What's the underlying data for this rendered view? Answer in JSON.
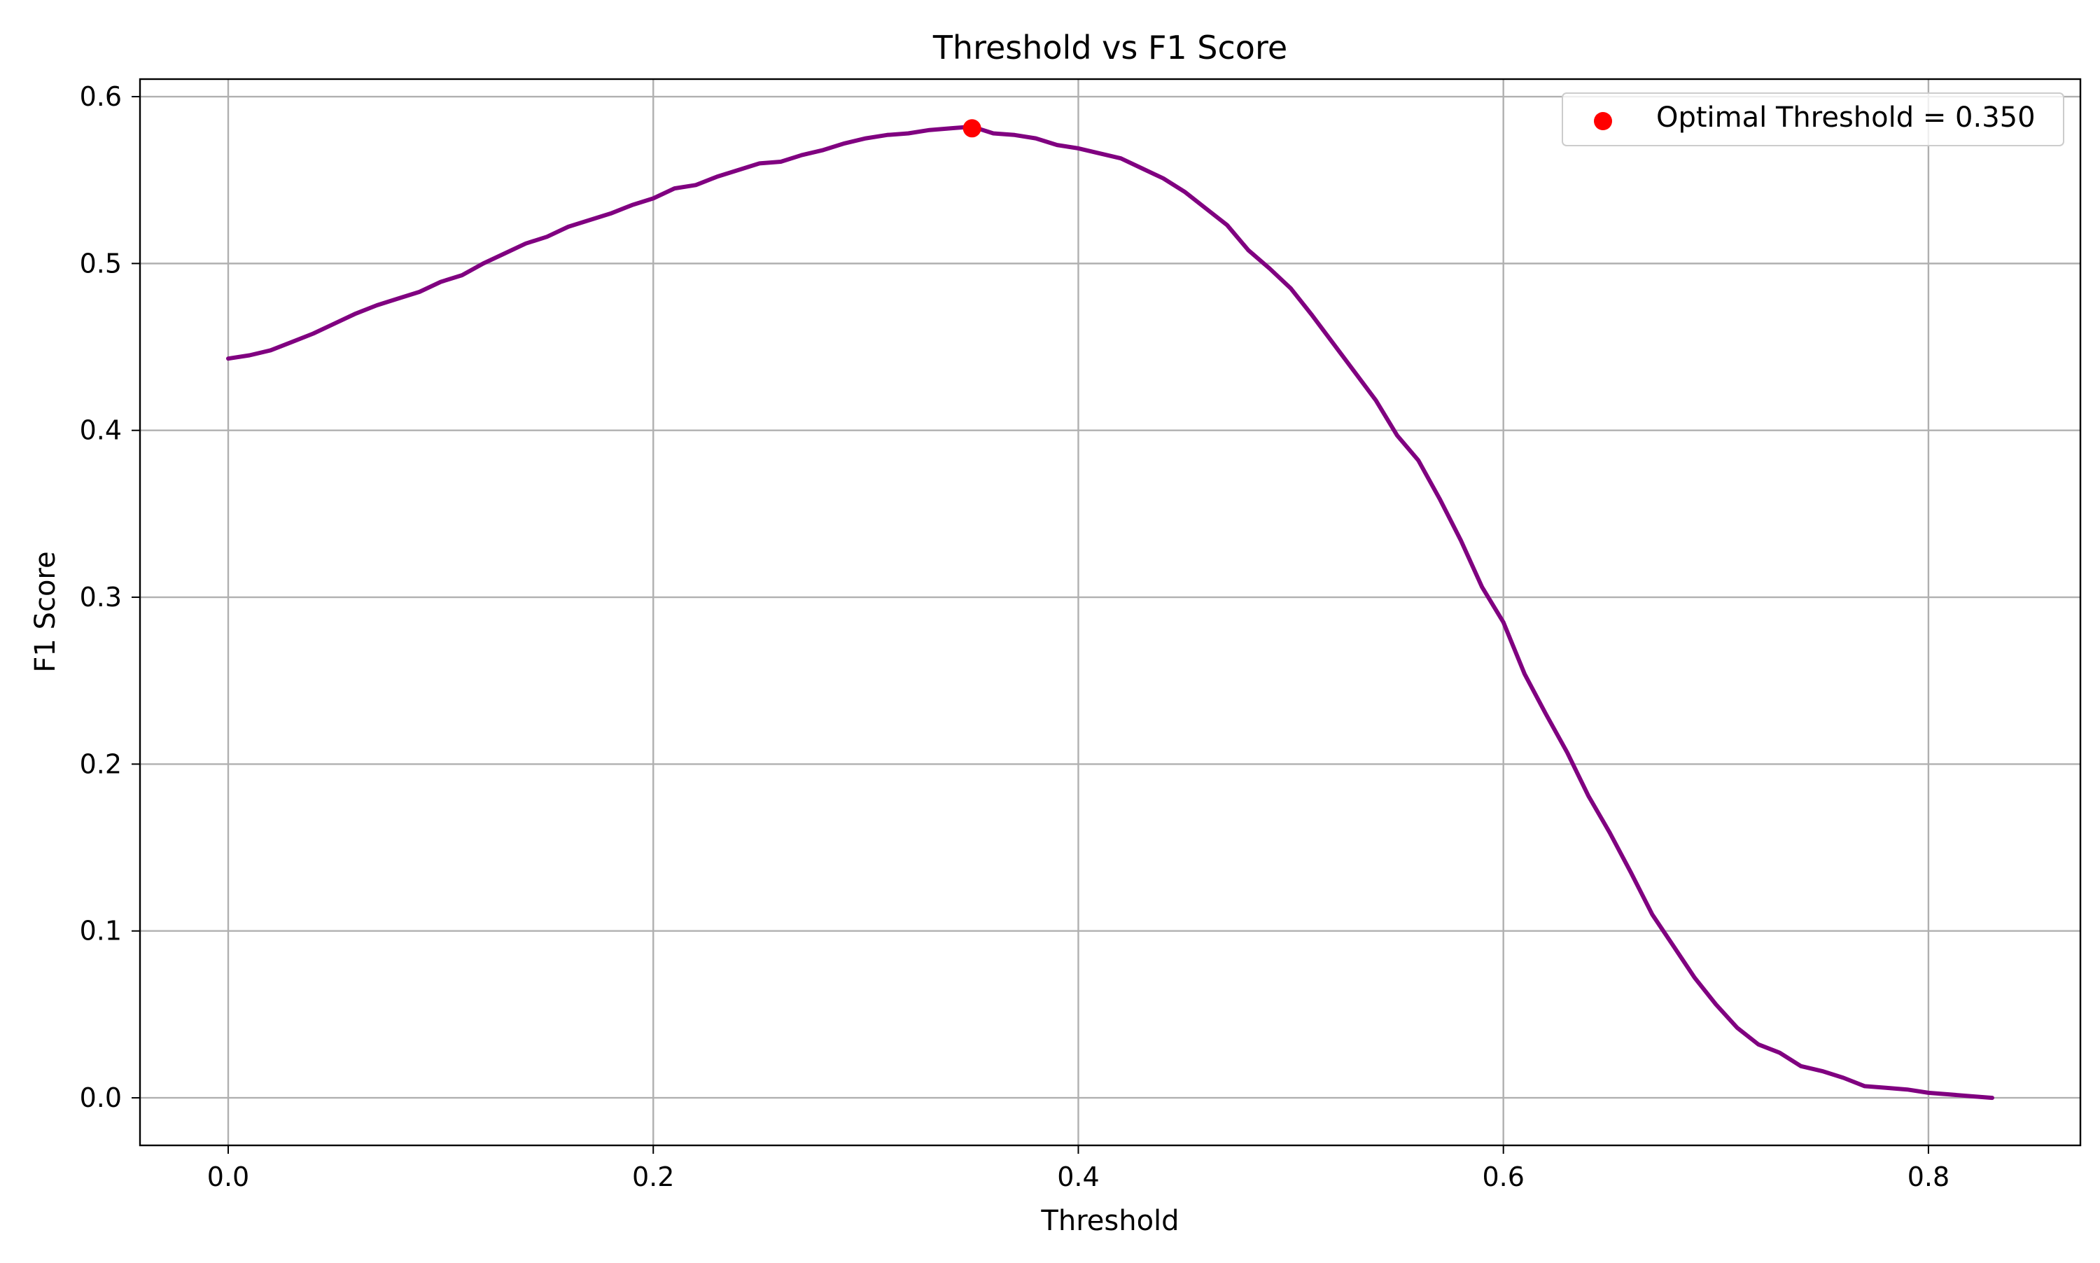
{
  "chart_data": {
    "type": "line",
    "title": "Threshold vs F1 Score",
    "xlabel": "Threshold",
    "ylabel": "F1 Score",
    "xlim": [
      -0.0415,
      0.8715
    ],
    "ylim": [
      -0.0285,
      0.6105
    ],
    "grid": true,
    "legend_position": "top-right",
    "x_ticks": [
      "0.0",
      "0.2",
      "0.4",
      "0.6",
      "0.8"
    ],
    "x_tick_values": [
      0.0,
      0.2,
      0.4,
      0.6,
      0.8
    ],
    "y_ticks": [
      "0.0",
      "0.1",
      "0.2",
      "0.3",
      "0.4",
      "0.5",
      "0.6"
    ],
    "y_tick_values": [
      0.0,
      0.1,
      0.2,
      0.3,
      0.4,
      0.5,
      0.6
    ],
    "series": [
      {
        "kind": "line",
        "color": "#800080",
        "x": [
          0.0,
          0.01,
          0.02,
          0.03,
          0.04,
          0.05,
          0.06,
          0.07,
          0.08,
          0.09,
          0.1,
          0.11,
          0.12,
          0.13,
          0.14,
          0.15,
          0.16,
          0.17,
          0.18,
          0.19,
          0.2,
          0.21,
          0.22,
          0.23,
          0.24,
          0.25,
          0.26,
          0.27,
          0.28,
          0.29,
          0.3,
          0.31,
          0.32,
          0.33,
          0.34,
          0.35,
          0.36,
          0.37,
          0.38,
          0.39,
          0.4,
          0.41,
          0.42,
          0.43,
          0.44,
          0.45,
          0.46,
          0.47,
          0.48,
          0.49,
          0.5,
          0.51,
          0.52,
          0.53,
          0.54,
          0.55,
          0.56,
          0.57,
          0.58,
          0.59,
          0.6,
          0.61,
          0.62,
          0.63,
          0.64,
          0.65,
          0.66,
          0.67,
          0.68,
          0.69,
          0.7,
          0.71,
          0.72,
          0.73,
          0.74,
          0.75,
          0.76,
          0.77,
          0.78,
          0.79,
          0.8,
          0.81,
          0.82,
          0.83
        ],
        "y": [
          0.443,
          0.445,
          0.448,
          0.453,
          0.458,
          0.464,
          0.47,
          0.475,
          0.479,
          0.483,
          0.489,
          0.493,
          0.5,
          0.506,
          0.512,
          0.516,
          0.522,
          0.526,
          0.53,
          0.535,
          0.539,
          0.545,
          0.547,
          0.552,
          0.556,
          0.56,
          0.561,
          0.565,
          0.568,
          0.572,
          0.575,
          0.577,
          0.578,
          0.58,
          0.581,
          0.582,
          0.578,
          0.577,
          0.575,
          0.571,
          0.569,
          0.566,
          0.563,
          0.557,
          0.551,
          0.543,
          0.533,
          0.523,
          0.508,
          0.497,
          0.485,
          0.469,
          0.452,
          0.435,
          0.418,
          0.397,
          0.382,
          0.359,
          0.334,
          0.306,
          0.285,
          0.254,
          0.23,
          0.207,
          0.181,
          0.159,
          0.135,
          0.11,
          0.091,
          0.072,
          0.056,
          0.042,
          0.032,
          0.027,
          0.019,
          0.016,
          0.012,
          0.007,
          0.006,
          0.005,
          0.003,
          0.002,
          0.001,
          0.0
        ]
      },
      {
        "kind": "scatter",
        "name": "Optimal Threshold = 0.350",
        "color": "#ff0000",
        "x": [
          0.35
        ],
        "y": [
          0.581
        ]
      }
    ]
  }
}
